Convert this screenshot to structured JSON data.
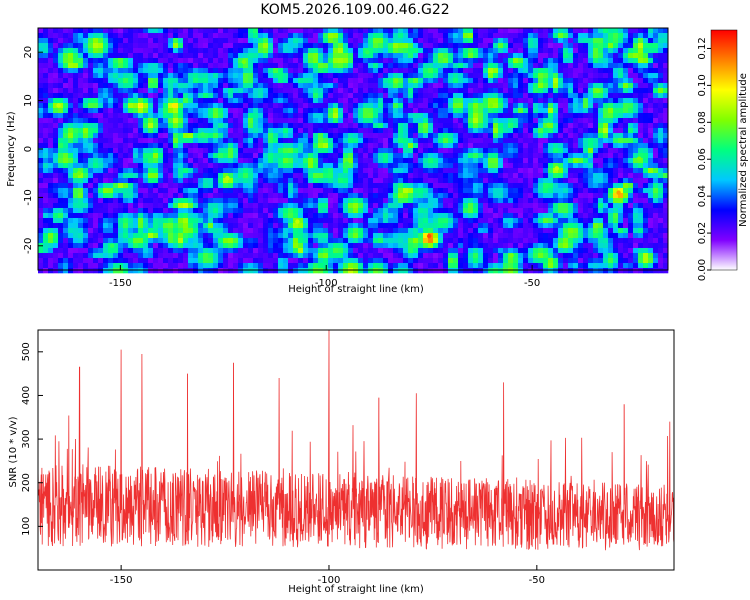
{
  "chart_data": [
    {
      "type": "heatmap",
      "title": "KOM5.2026.109.00.46.G22",
      "xlabel": "Height of straight line (km)",
      "ylabel": "Frequency (Hz)",
      "xlim": [
        -170,
        -17
      ],
      "ylim": [
        -25,
        25
      ],
      "xticks": [
        -150,
        -100,
        -50
      ],
      "yticks": [
        -20,
        -10,
        0,
        10,
        20
      ],
      "colorbar": {
        "label": "Normalized spectral amplitude",
        "range": [
          0,
          0.13
        ],
        "ticks": [
          "0.00",
          "0.02",
          "0.04",
          "0.06",
          "0.08",
          "0.10",
          "0.12"
        ],
        "colormap": [
          "#ffffff",
          "#8000ff",
          "#0000ff",
          "#00c8ff",
          "#00ff80",
          "#80ff00",
          "#ffff00",
          "#ff8000",
          "#ff0000"
        ]
      },
      "hotspots": [
        {
          "x": -75,
          "y": -18,
          "value": 0.12
        },
        {
          "x": -29,
          "y": -9,
          "value": 0.11
        },
        {
          "x": -145,
          "y": 9,
          "value": 0.1
        },
        {
          "x": -137,
          "y": 9,
          "value": 0.1
        },
        {
          "x": -165,
          "y": 9,
          "value": 0.09
        },
        {
          "x": -124,
          "y": -6,
          "value": 0.09
        },
        {
          "x": -107,
          "y": -15,
          "value": 0.09
        },
        {
          "x": -55,
          "y": -22,
          "value": 0.08
        },
        {
          "x": -44,
          "y": -4,
          "value": 0.09
        },
        {
          "x": -46,
          "y": 5,
          "value": 0.08
        },
        {
          "x": -83,
          "y": 14,
          "value": 0.08
        },
        {
          "x": -120,
          "y": 18,
          "value": 0.08
        },
        {
          "x": -160,
          "y": -5,
          "value": 0.08
        },
        {
          "x": -95,
          "y": -3,
          "value": 0.07
        },
        {
          "x": -60,
          "y": 9,
          "value": 0.08
        },
        {
          "x": -130,
          "y": 3,
          "value": 0.07
        },
        {
          "x": -24,
          "y": -2,
          "value": 0.08
        },
        {
          "x": -152,
          "y": -20,
          "value": 0.07
        },
        {
          "x": -90,
          "y": 20,
          "value": 0.07
        },
        {
          "x": -34,
          "y": 12,
          "value": 0.08
        }
      ]
    },
    {
      "type": "line",
      "xlabel": "Height of straight line (km)",
      "ylabel": "SNR (10 * v/v)",
      "xlim": [
        -170,
        -17
      ],
      "ylim": [
        0,
        550
      ],
      "xticks": [
        -150,
        -100,
        -50
      ],
      "yticks": [
        100,
        200,
        300,
        400,
        500
      ],
      "series": [
        {
          "color": "#ee3030",
          "baseline": 150,
          "peaks": [
            {
              "x": -100,
              "y": 550
            },
            {
              "x": -150,
              "y": 505
            },
            {
              "x": -145,
              "y": 495
            },
            {
              "x": -123,
              "y": 475
            },
            {
              "x": -160,
              "y": 465
            },
            {
              "x": -134,
              "y": 450
            },
            {
              "x": -112,
              "y": 440
            },
            {
              "x": -58,
              "y": 430
            },
            {
              "x": -79,
              "y": 405
            },
            {
              "x": -88,
              "y": 395
            },
            {
              "x": -29,
              "y": 380
            },
            {
              "x": -18,
              "y": 340
            }
          ]
        }
      ]
    }
  ]
}
